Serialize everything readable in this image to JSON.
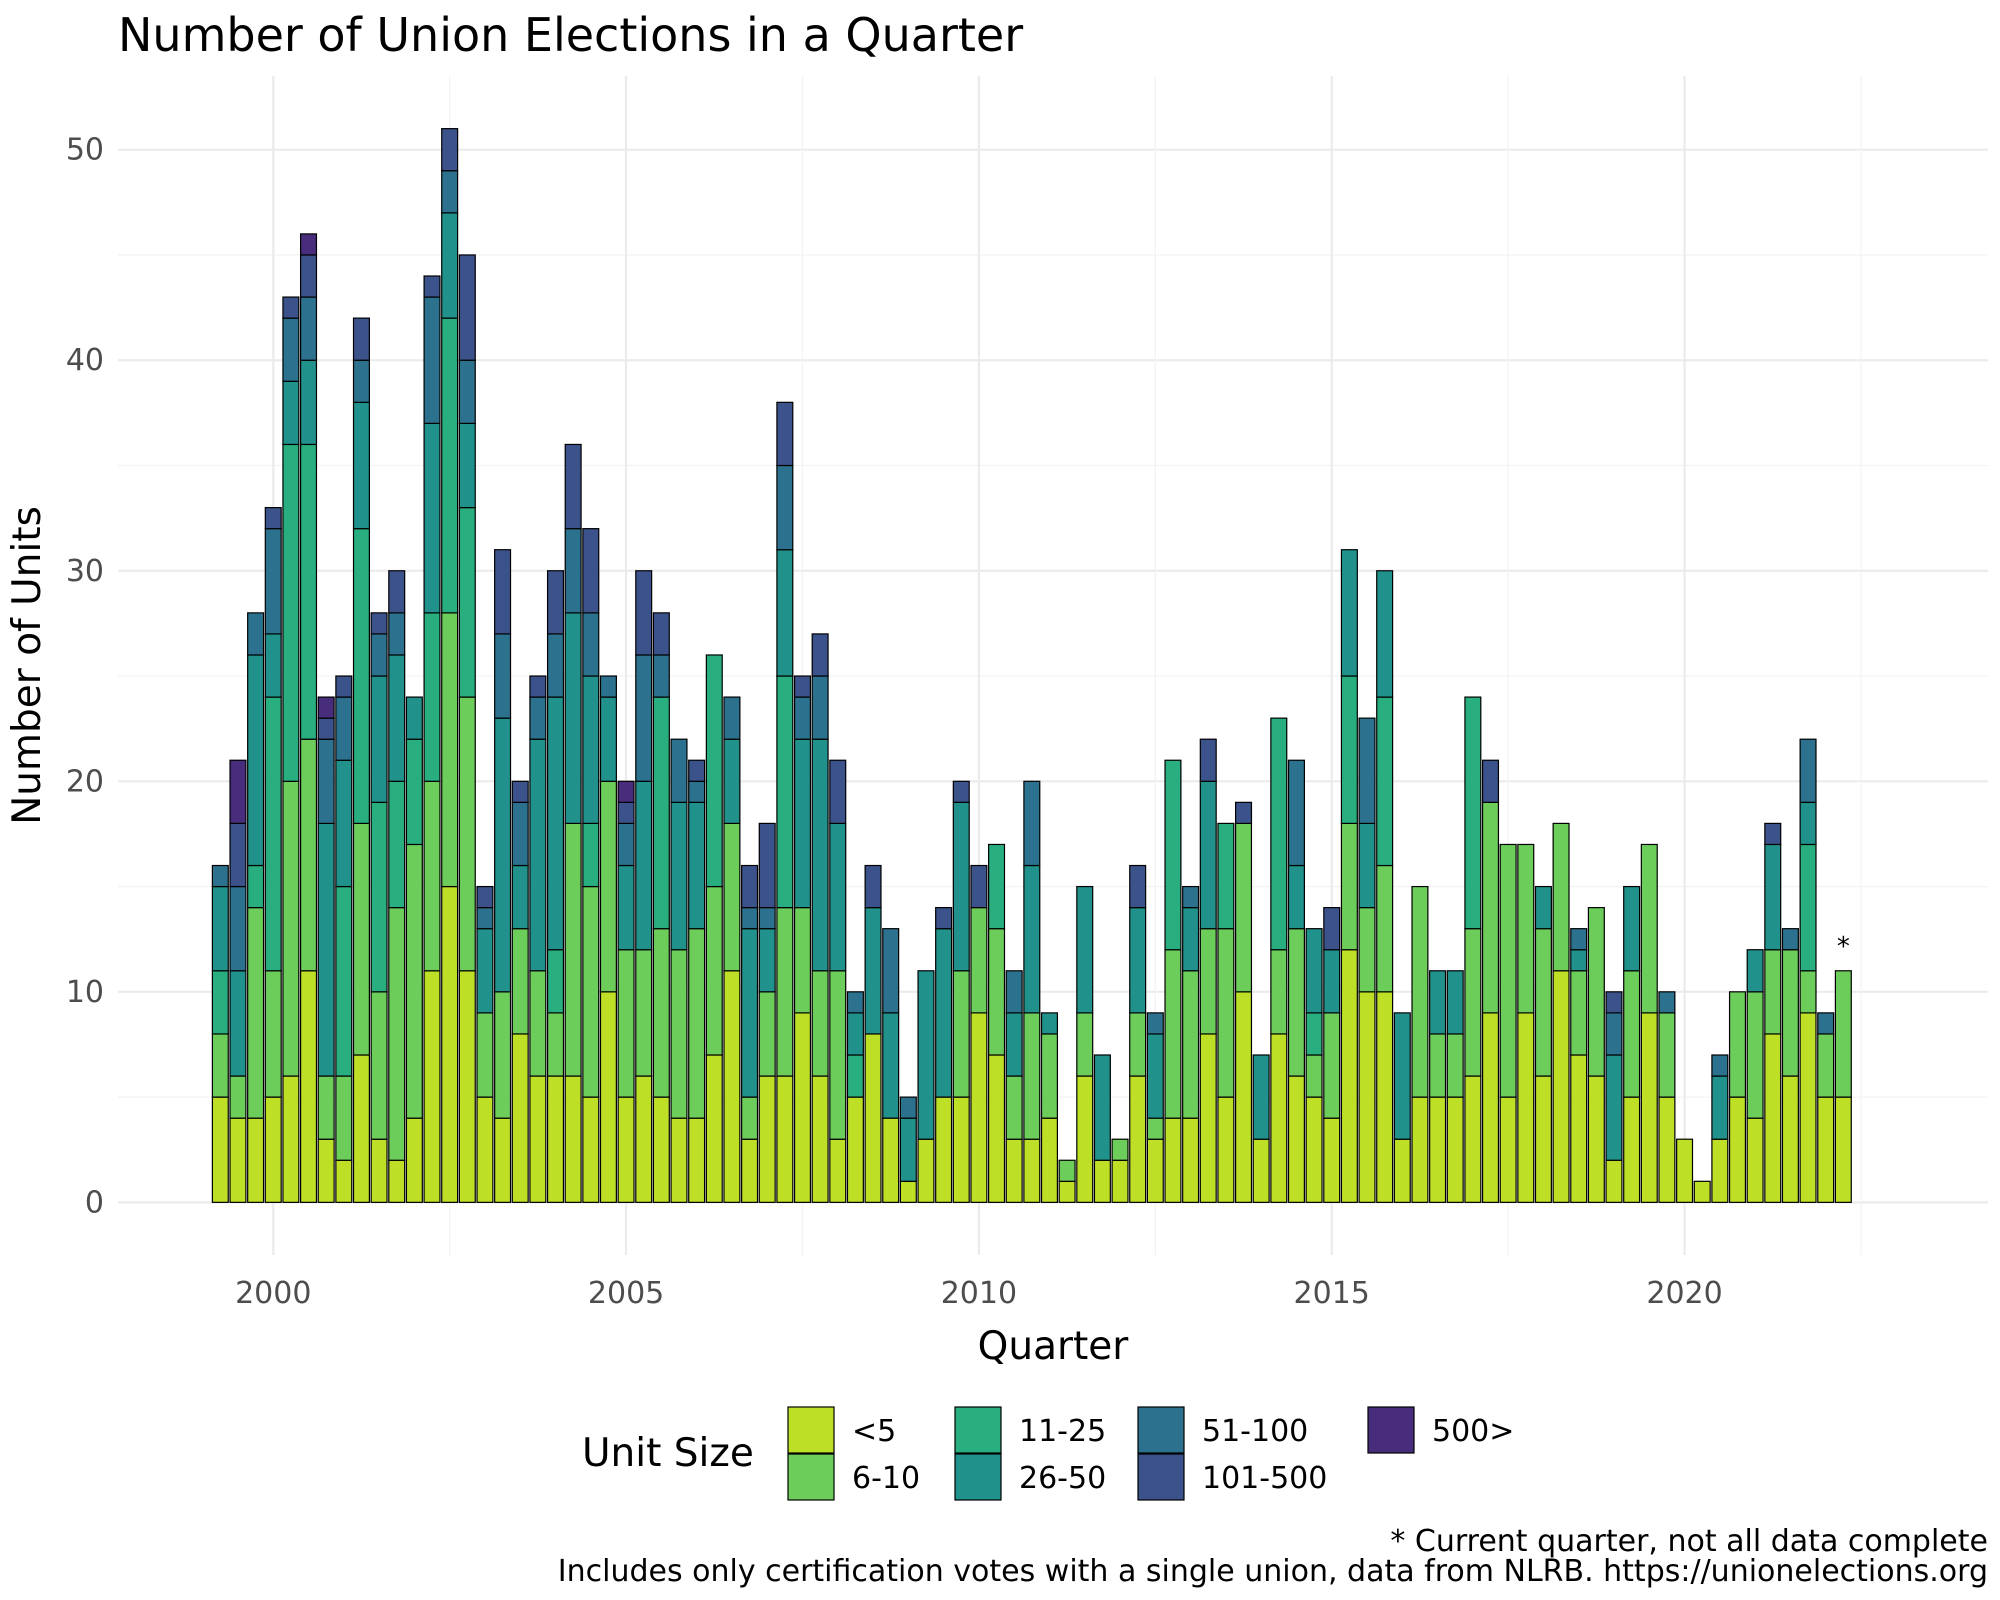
{
  "chart_data": {
    "type": "bar",
    "stacked": true,
    "title": "Number of Union Elections in a Quarter",
    "xlabel": "Quarter",
    "ylabel": "Number of Units",
    "ylim": [
      -2.5,
      53.5
    ],
    "xlim": [
      1997.8,
      2024.3
    ],
    "x_ticks": [
      2000,
      2005,
      2010,
      2015,
      2020
    ],
    "y_ticks": [
      0,
      10,
      20,
      30,
      40,
      50
    ],
    "grid": true,
    "legend_title": "Unit Size",
    "legend_position": "bottom",
    "series": [
      {
        "name": "<5",
        "color": "#bddf26",
        "values": [
          5,
          4,
          4,
          5,
          6,
          11,
          3,
          2,
          7,
          3,
          2,
          4,
          11,
          15,
          11,
          5,
          4,
          8,
          6,
          6,
          6,
          5,
          10,
          5,
          6,
          5,
          4,
          4,
          7,
          11,
          3,
          6,
          6,
          9,
          6,
          3,
          5,
          8,
          4,
          1,
          3,
          5,
          5,
          9,
          7,
          3,
          3,
          4,
          1,
          6,
          2,
          2,
          6,
          3,
          4,
          4,
          8,
          5,
          10,
          3,
          8,
          6,
          5,
          4,
          12,
          10,
          10,
          3,
          5,
          5,
          5,
          6,
          9,
          5,
          9,
          6,
          11,
          7,
          6,
          2,
          5,
          9,
          5,
          3,
          1,
          3,
          5,
          4,
          8,
          6,
          9,
          5,
          5
        ]
      },
      {
        "name": "6-10",
        "color": "#6ccd5a",
        "values": [
          3,
          2,
          10,
          6,
          14,
          11,
          3,
          4,
          11,
          7,
          12,
          13,
          9,
          13,
          13,
          4,
          6,
          5,
          5,
          3,
          12,
          10,
          10,
          7,
          6,
          8,
          8,
          9,
          8,
          7,
          2,
          4,
          8,
          5,
          5,
          8,
          0,
          0,
          0,
          0,
          0,
          0,
          6,
          5,
          6,
          3,
          6,
          4,
          1,
          3,
          0,
          1,
          3,
          1,
          8,
          7,
          5,
          8,
          8,
          0,
          4,
          7,
          2,
          5,
          6,
          4,
          6,
          0,
          10,
          3,
          3,
          7,
          10,
          12,
          8,
          7,
          7,
          4,
          8,
          0,
          6,
          8,
          4,
          0,
          0,
          0,
          5,
          6,
          4,
          6,
          2,
          3,
          6
        ]
      },
      {
        "name": "11-25",
        "color": "#29af7f",
        "values": [
          3,
          0,
          2,
          13,
          16,
          14,
          0,
          9,
          14,
          9,
          6,
          5,
          8,
          14,
          9,
          0,
          0,
          0,
          0,
          3,
          0,
          3,
          0,
          0,
          0,
          11,
          0,
          0,
          11,
          0,
          0,
          0,
          11,
          0,
          0,
          0,
          2,
          0,
          0,
          0,
          0,
          0,
          0,
          0,
          4,
          0,
          0,
          0,
          0,
          0,
          0,
          0,
          0,
          0,
          9,
          0,
          0,
          5,
          0,
          0,
          11,
          0,
          2,
          0,
          7,
          0,
          8,
          0,
          0,
          0,
          0,
          11,
          0,
          0,
          0,
          0,
          0,
          0,
          0,
          0,
          0,
          0,
          0,
          0,
          0,
          0,
          0,
          0,
          0,
          0,
          6,
          0,
          0
        ]
      },
      {
        "name": "26-50",
        "color": "#21918c",
        "values": [
          4,
          5,
          10,
          3,
          3,
          4,
          12,
          6,
          6,
          6,
          6,
          2,
          9,
          5,
          4,
          4,
          13,
          3,
          11,
          12,
          10,
          7,
          4,
          4,
          8,
          0,
          7,
          6,
          0,
          4,
          8,
          3,
          6,
          8,
          11,
          7,
          2,
          6,
          5,
          3,
          8,
          8,
          8,
          0,
          0,
          3,
          7,
          1,
          0,
          6,
          5,
          0,
          5,
          4,
          0,
          3,
          7,
          0,
          0,
          4,
          0,
          3,
          4,
          3,
          6,
          4,
          6,
          6,
          0,
          3,
          3,
          0,
          0,
          0,
          0,
          2,
          0,
          1,
          0,
          5,
          4,
          0,
          0,
          0,
          0,
          3,
          0,
          2,
          5,
          0,
          2,
          0,
          0
        ]
      },
      {
        "name": "51-100",
        "color": "#2c728e",
        "values": [
          1,
          4,
          2,
          5,
          3,
          3,
          4,
          3,
          2,
          2,
          2,
          0,
          6,
          2,
          3,
          1,
          4,
          3,
          2,
          3,
          4,
          3,
          1,
          2,
          6,
          2,
          3,
          1,
          0,
          2,
          1,
          1,
          4,
          2,
          3,
          0,
          1,
          0,
          4,
          1,
          0,
          0,
          0,
          0,
          0,
          2,
          4,
          0,
          0,
          0,
          0,
          0,
          0,
          1,
          0,
          1,
          0,
          0,
          0,
          0,
          0,
          5,
          0,
          0,
          0,
          5,
          0,
          0,
          0,
          0,
          0,
          0,
          0,
          0,
          0,
          0,
          0,
          1,
          0,
          2,
          0,
          0,
          1,
          0,
          0,
          1,
          0,
          0,
          0,
          1,
          3,
          1,
          0
        ]
      },
      {
        "name": "101-500",
        "color": "#3b528b",
        "values": [
          0,
          3,
          0,
          1,
          1,
          2,
          1,
          1,
          2,
          1,
          2,
          0,
          1,
          2,
          5,
          1,
          4,
          1,
          1,
          3,
          4,
          4,
          0,
          1,
          4,
          2,
          0,
          1,
          0,
          0,
          2,
          4,
          3,
          1,
          2,
          3,
          0,
          2,
          0,
          0,
          0,
          1,
          1,
          2,
          0,
          0,
          0,
          0,
          0,
          0,
          0,
          0,
          2,
          0,
          0,
          0,
          2,
          0,
          1,
          0,
          0,
          0,
          0,
          2,
          0,
          0,
          0,
          0,
          0,
          0,
          0,
          0,
          2,
          0,
          0,
          0,
          0,
          0,
          0,
          1,
          0,
          0,
          0,
          0,
          0,
          0,
          0,
          0,
          1,
          0,
          0,
          0,
          0
        ]
      },
      {
        "name": "500>",
        "color": "#472d7b",
        "values": [
          0,
          3,
          0,
          0,
          0,
          1,
          1,
          0,
          0,
          0,
          0,
          0,
          0,
          0,
          0,
          0,
          0,
          0,
          0,
          0,
          0,
          0,
          0,
          1,
          0,
          0,
          0,
          0,
          0,
          0,
          0,
          0,
          0,
          0,
          0,
          0,
          0,
          0,
          0,
          0,
          0,
          0,
          0,
          0,
          0,
          0,
          0,
          0,
          0,
          0,
          0,
          0,
          0,
          0,
          0,
          0,
          0,
          0,
          0,
          0,
          0,
          0,
          0,
          0,
          0,
          0,
          0,
          0,
          0,
          0,
          0,
          0,
          0,
          0,
          0,
          0,
          0,
          0,
          0,
          0,
          0,
          0,
          0,
          0,
          0,
          0,
          0,
          0,
          0,
          0,
          0,
          0,
          0
        ]
      }
    ],
    "annotation": "*",
    "footnote_1": "* Current quarter, not all data complete",
    "footnote_2": "Includes only certification votes with a single union, data from NLRB. https://unionelections.org"
  }
}
